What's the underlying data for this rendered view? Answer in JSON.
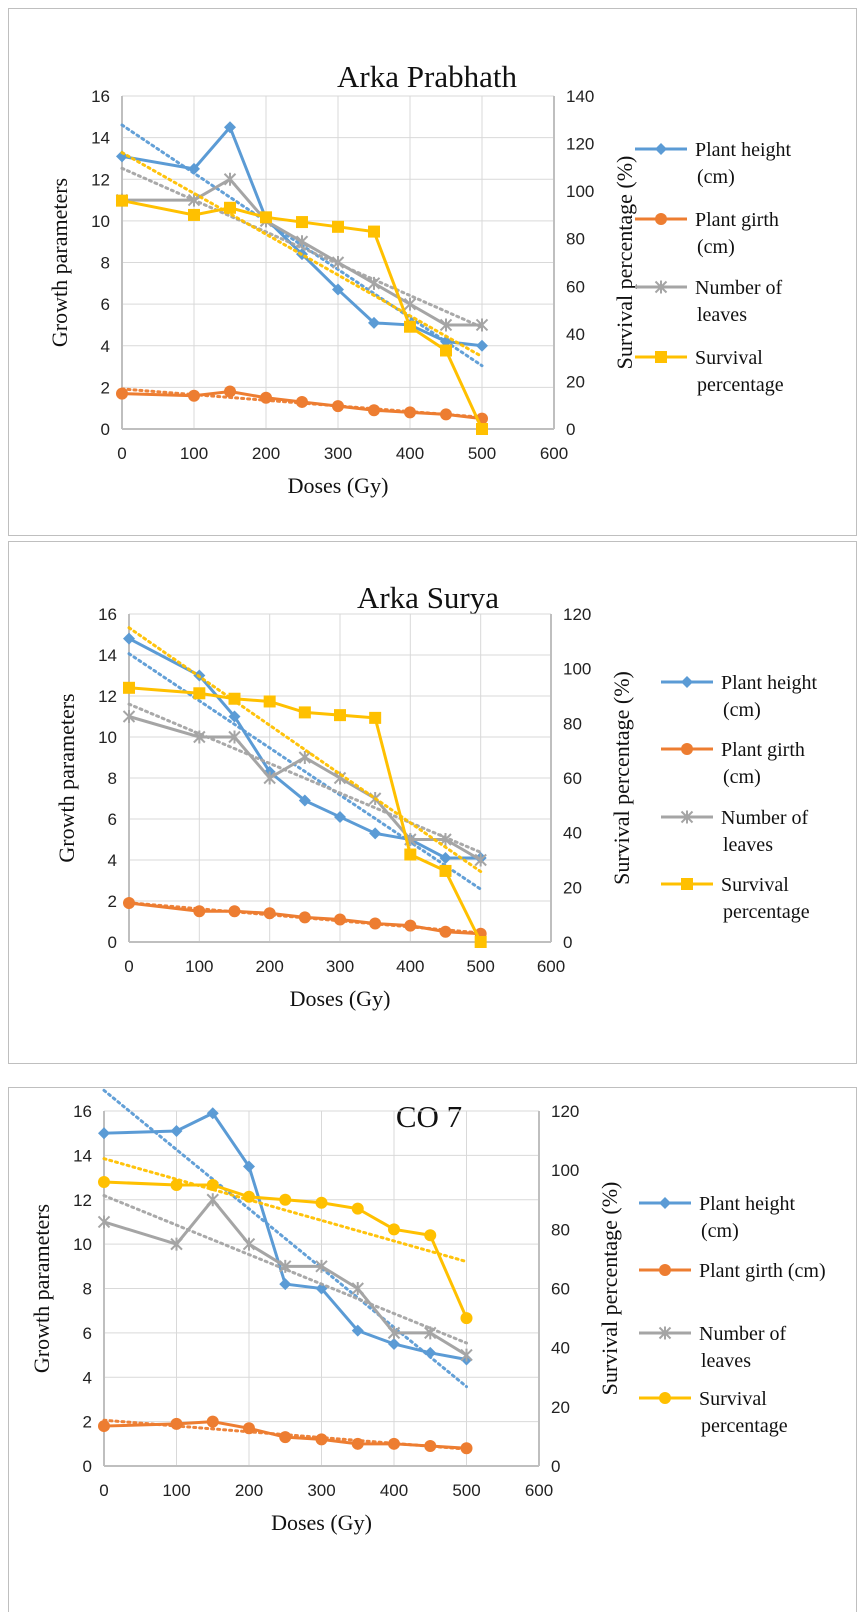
{
  "chart_data": [
    {
      "type": "line",
      "title": "Arka Prabhath",
      "xlabel": "Doses (Gy)",
      "ylabel": "Growth parameters",
      "y2label": "Survival percentage (%)",
      "x": [
        0,
        100,
        150,
        200,
        250,
        300,
        350,
        400,
        450,
        500
      ],
      "xticks": [
        "0",
        "100",
        "200",
        "300",
        "400",
        "500",
        "600"
      ],
      "xlim": [
        0,
        600
      ],
      "ylim": [
        0,
        16
      ],
      "yticks": [
        "0",
        "2",
        "4",
        "6",
        "8",
        "10",
        "12",
        "14",
        "16"
      ],
      "y2lim": [
        0,
        140
      ],
      "y2ticks": [
        "0",
        "20",
        "40",
        "60",
        "80",
        "100",
        "120",
        "140"
      ],
      "grid": true,
      "legend_position": "right",
      "series": [
        {
          "name_lines": [
            "Plant height",
            "(cm)"
          ],
          "axis": "left",
          "marker": "diamond",
          "color": "#5b9bd5",
          "trend": true,
          "values": [
            13.1,
            12.5,
            14.5,
            10.1,
            8.4,
            6.7,
            5.1,
            5.0,
            4.2,
            4.0
          ]
        },
        {
          "name_lines": [
            "Plant girth",
            "(cm)"
          ],
          "axis": "left",
          "marker": "circle",
          "color": "#ed7d31",
          "trend": true,
          "values": [
            1.7,
            1.6,
            1.8,
            1.5,
            1.3,
            1.1,
            0.9,
            0.8,
            0.7,
            0.5
          ]
        },
        {
          "name_lines": [
            "Number of",
            "leaves"
          ],
          "axis": "left",
          "marker": "star",
          "color": "#a5a5a5",
          "trend": true,
          "values": [
            11,
            11,
            12,
            10,
            9,
            8,
            7,
            6,
            5,
            5
          ]
        },
        {
          "name_lines": [
            "Survival",
            "percentage"
          ],
          "axis": "right",
          "marker": "square",
          "color": "#ffc000",
          "trend": true,
          "values": [
            96,
            90,
            93,
            89,
            87,
            85,
            83,
            43,
            33,
            0
          ]
        }
      ]
    },
    {
      "type": "line",
      "title": "Arka Surya",
      "xlabel": "Doses (Gy)",
      "ylabel": "Growth parameters",
      "y2label": "Survival percentage (%)",
      "x": [
        0,
        100,
        150,
        200,
        250,
        300,
        350,
        400,
        450,
        500
      ],
      "xticks": [
        "0",
        "100",
        "200",
        "300",
        "400",
        "500",
        "600"
      ],
      "xlim": [
        0,
        600
      ],
      "ylim": [
        0,
        16
      ],
      "yticks": [
        "0",
        "2",
        "4",
        "6",
        "8",
        "10",
        "12",
        "14",
        "16"
      ],
      "y2lim": [
        0,
        120
      ],
      "y2ticks": [
        "0",
        "20",
        "40",
        "60",
        "80",
        "100",
        "120"
      ],
      "grid": true,
      "legend_position": "right",
      "series": [
        {
          "name_lines": [
            "Plant height",
            "(cm)"
          ],
          "axis": "left",
          "marker": "diamond",
          "color": "#5b9bd5",
          "trend": true,
          "values": [
            14.8,
            13.0,
            11.0,
            8.3,
            6.9,
            6.1,
            5.3,
            5.0,
            4.1,
            4.1
          ]
        },
        {
          "name_lines": [
            "Plant girth",
            "(cm)"
          ],
          "axis": "left",
          "marker": "circle",
          "color": "#ed7d31",
          "trend": true,
          "values": [
            1.9,
            1.5,
            1.5,
            1.4,
            1.2,
            1.1,
            0.9,
            0.8,
            0.5,
            0.4
          ]
        },
        {
          "name_lines": [
            "Number of",
            "leaves"
          ],
          "axis": "left",
          "marker": "star",
          "color": "#a5a5a5",
          "trend": true,
          "values": [
            11,
            10,
            10,
            8,
            9,
            8,
            7,
            5,
            5,
            4
          ]
        },
        {
          "name_lines": [
            "Survival",
            "percentage"
          ],
          "axis": "right",
          "marker": "square",
          "color": "#ffc000",
          "trend": true,
          "values": [
            93,
            91,
            89,
            88,
            84,
            83,
            82,
            32,
            26,
            0
          ]
        }
      ]
    },
    {
      "type": "line",
      "title": "CO 7",
      "xlabel": "Doses (Gy)",
      "ylabel": "Growth parameters",
      "y2label": "Survival percentage (%)",
      "x": [
        0,
        100,
        150,
        200,
        250,
        300,
        350,
        400,
        450,
        500
      ],
      "xticks": [
        "0",
        "100",
        "200",
        "300",
        "400",
        "500",
        "600"
      ],
      "xlim": [
        0,
        600
      ],
      "ylim": [
        0,
        16
      ],
      "yticks": [
        "0",
        "2",
        "4",
        "6",
        "8",
        "10",
        "12",
        "14",
        "16"
      ],
      "y2lim": [
        0,
        120
      ],
      "y2ticks": [
        "0",
        "20",
        "40",
        "60",
        "80",
        "100",
        "120"
      ],
      "grid": true,
      "legend_position": "right",
      "series": [
        {
          "name_lines": [
            "Plant height",
            "(cm)"
          ],
          "axis": "left",
          "marker": "diamond",
          "color": "#5b9bd5",
          "trend": true,
          "values": [
            15.0,
            15.1,
            15.9,
            13.5,
            8.2,
            8.0,
            6.1,
            5.5,
            5.1,
            4.8
          ]
        },
        {
          "name_lines": [
            "Plant girth (cm)"
          ],
          "axis": "left",
          "marker": "circle",
          "color": "#ed7d31",
          "trend": true,
          "values": [
            1.8,
            1.9,
            2.0,
            1.7,
            1.3,
            1.2,
            1.0,
            1.0,
            0.9,
            0.8
          ]
        },
        {
          "name_lines": [
            "Number of",
            "leaves"
          ],
          "axis": "left",
          "marker": "star",
          "color": "#a5a5a5",
          "trend": true,
          "values": [
            11,
            10,
            12,
            10,
            9,
            9,
            8,
            6,
            6,
            5
          ]
        },
        {
          "name_lines": [
            "Survival",
            "percentage"
          ],
          "axis": "right",
          "marker": "circle",
          "color": "#ffc000",
          "trend": true,
          "values": [
            96,
            95,
            95,
            91,
            90,
            89,
            87,
            80,
            78,
            50
          ]
        }
      ]
    }
  ]
}
